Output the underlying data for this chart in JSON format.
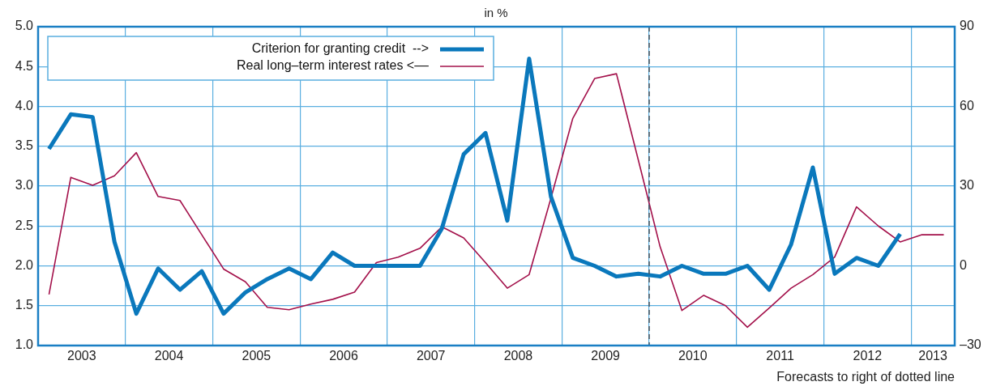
{
  "chart_data": {
    "type": "line",
    "title": "in %",
    "x": [
      2003.125,
      2003.375,
      2003.625,
      2003.875,
      2004.125,
      2004.375,
      2004.625,
      2004.875,
      2005.125,
      2005.375,
      2005.625,
      2005.875,
      2006.125,
      2006.375,
      2006.625,
      2006.875,
      2007.125,
      2007.375,
      2007.625,
      2007.875,
      2008.125,
      2008.375,
      2008.625,
      2008.875,
      2009.125,
      2009.375,
      2009.625,
      2009.875,
      2010.125,
      2010.375,
      2010.625,
      2010.875,
      2011.125,
      2011.375,
      2011.625,
      2011.875,
      2012.125,
      2012.375,
      2012.625,
      2012.875,
      2013.125,
      2013.375
    ],
    "series": [
      {
        "name": "Criterion for granting credit  -->",
        "color": "#0a78bc",
        "axis": "y2",
        "values": [
          44,
          57,
          56,
          9,
          -18,
          -1,
          -9,
          -2,
          -18,
          -10,
          -5,
          -1,
          -5,
          5,
          0,
          0,
          0,
          0,
          14,
          42,
          50,
          17,
          78,
          26,
          3,
          0,
          -4,
          -3,
          -4,
          0,
          -3,
          -3,
          0,
          -9,
          8,
          37,
          -3,
          3,
          0,
          12,
          null,
          null
        ]
      },
      {
        "name": "Real long–term interest rates <––",
        "color": "#a3104a",
        "axis": "y",
        "values": [
          1.64,
          3.11,
          3.01,
          3.13,
          3.42,
          2.87,
          2.82,
          2.39,
          1.96,
          1.8,
          1.48,
          1.45,
          1.52,
          1.58,
          1.67,
          2.04,
          2.11,
          2.22,
          2.49,
          2.35,
          2.04,
          1.72,
          1.89,
          2.85,
          3.85,
          4.35,
          4.41,
          3.33,
          2.24,
          1.44,
          1.63,
          1.5,
          1.23,
          1.47,
          1.72,
          1.89,
          2.11,
          2.74,
          2.5,
          2.3,
          2.39,
          2.39
        ]
      }
    ],
    "xlim": [
      2003,
      2013.5
    ],
    "xticks": [
      {
        "value": 2003.5,
        "label": "2003"
      },
      {
        "value": 2004,
        "label": null
      },
      {
        "value": 2004.5,
        "label": "2004"
      },
      {
        "value": 2005,
        "label": null
      },
      {
        "value": 2005.5,
        "label": "2005"
      },
      {
        "value": 2006,
        "label": null
      },
      {
        "value": 2006.5,
        "label": "2006"
      },
      {
        "value": 2007,
        "label": null
      },
      {
        "value": 2007.5,
        "label": "2007"
      },
      {
        "value": 2008,
        "label": null
      },
      {
        "value": 2008.5,
        "label": "2008"
      },
      {
        "value": 2009,
        "label": null
      },
      {
        "value": 2009.5,
        "label": "2009"
      },
      {
        "value": 2010,
        "label": null
      },
      {
        "value": 2010.5,
        "label": "2010"
      },
      {
        "value": 2011,
        "label": null
      },
      {
        "value": 2011.5,
        "label": "2011"
      },
      {
        "value": 2012,
        "label": null
      },
      {
        "value": 2012.5,
        "label": "2012"
      },
      {
        "value": 2013,
        "label": null
      },
      {
        "value": 2013.25,
        "label": "2013"
      }
    ],
    "ylim": [
      1.0,
      5.0
    ],
    "yticks": [
      {
        "value": 1,
        "label": "1.0"
      },
      {
        "value": 1.5,
        "label": "1.5"
      },
      {
        "value": 2,
        "label": "2.0"
      },
      {
        "value": 2.5,
        "label": "2.5"
      },
      {
        "value": 3,
        "label": "3.0"
      },
      {
        "value": 3.5,
        "label": "3.5"
      },
      {
        "value": 4,
        "label": "4.0"
      },
      {
        "value": 4.5,
        "label": "4.5"
      },
      {
        "value": 5,
        "label": "5.0"
      }
    ],
    "y2lim": [
      -30,
      90
    ],
    "y2ticks": [
      {
        "value": -30,
        "label": "–30"
      },
      0,
      30,
      60,
      90
    ],
    "ref_lines": [
      {
        "axis": "x",
        "value": 2010,
        "color": "#44505a",
        "line_style": "dashed"
      }
    ],
    "annotations": [
      "Forecasts to right of dotted line"
    ],
    "grid": true,
    "legend": "top left",
    "marker": "none",
    "line_style": "solid"
  }
}
